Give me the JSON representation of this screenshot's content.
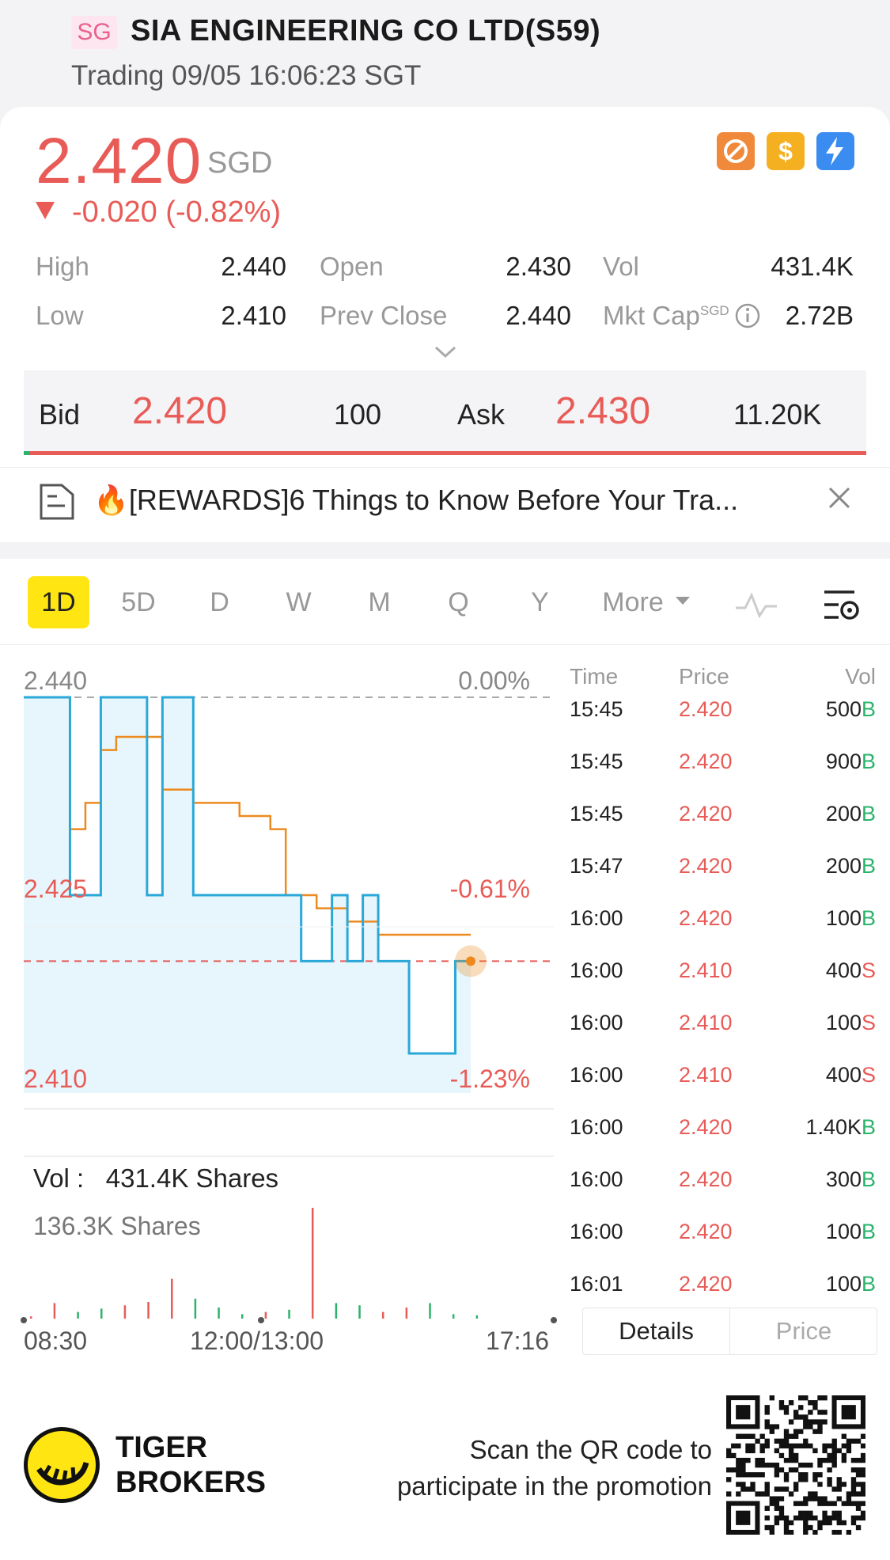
{
  "header": {
    "market_badge": "SG",
    "stock_name": "SIA ENGINEERING CO LTD(S59)",
    "trading_status": "Trading 09/05 16:06:23 SGT"
  },
  "quote": {
    "last_price": "2.420",
    "currency": "SGD",
    "change": "-0.020 (-0.82%)",
    "flags": [
      "no-short-icon",
      "dividend-icon",
      "fast-trade-icon"
    ],
    "stats": {
      "high_label": "High",
      "high": "2.440",
      "low_label": "Low",
      "low": "2.410",
      "open_label": "Open",
      "open": "2.430",
      "prev_close_label": "Prev Close",
      "prev_close": "2.440",
      "vol_label": "Vol",
      "vol": "431.4K",
      "mkt_cap_label": "Mkt Cap",
      "mkt_cap_sup": "SGD",
      "mkt_cap": "2.72B"
    }
  },
  "bid_ask": {
    "bid_label": "Bid",
    "bid_price": "2.420",
    "bid_size": "100",
    "ask_label": "Ask",
    "ask_price": "2.430",
    "ask_size": "11.20K"
  },
  "news": {
    "text": "🔥[REWARDS]6 Things to Know Before Your Tra..."
  },
  "chart_tabs": [
    "1D",
    "5D",
    "D",
    "W",
    "M",
    "Q",
    "Y",
    "More"
  ],
  "colors": {
    "up": "#2bb36b",
    "down": "#e85b57",
    "price_line": "#2aa8d8",
    "avg_line": "#ec8a1f",
    "accent": "#ffe612"
  },
  "chart_data": {
    "type": "line",
    "y_labels": {
      "top": "2.440",
      "mid": "2.425",
      "bottom": "2.410"
    },
    "pct_labels": {
      "top": "0.00%",
      "mid": "-0.61%",
      "bottom": "-1.23%"
    },
    "ylim": [
      2.41,
      2.44
    ],
    "prev_close": 2.44,
    "last": 2.42,
    "series": [
      {
        "values": [
          2.44,
          2.44,
          2.44,
          2.425,
          2.425,
          2.44,
          2.44,
          2.44,
          2.425,
          2.44,
          2.44,
          2.425,
          2.425,
          2.425,
          2.425,
          2.425,
          2.425,
          2.425,
          2.42,
          2.42,
          2.425,
          2.42,
          2.425,
          2.42,
          2.42,
          2.413,
          2.413,
          2.413,
          2.42,
          2.42
        ]
      },
      {
        "values": [
          2.44,
          2.44,
          2.44,
          2.43,
          2.432,
          2.436,
          2.437,
          2.437,
          2.437,
          2.433,
          2.433,
          2.432,
          2.432,
          2.432,
          2.431,
          2.431,
          2.43,
          2.425,
          2.425,
          2.424,
          2.424,
          2.423,
          2.423,
          2.422,
          2.422,
          2.422,
          2.422,
          2.422,
          2.422,
          2.422
        ]
      }
    ],
    "volume": {
      "label": "Vol :",
      "total": "431.4K Shares",
      "max_label": "136.3K Shares",
      "bars": [
        {
          "v": 2,
          "c": "down"
        },
        {
          "v": 14,
          "c": "down"
        },
        {
          "v": 6,
          "c": "up"
        },
        {
          "v": 9,
          "c": "up"
        },
        {
          "v": 12,
          "c": "down"
        },
        {
          "v": 15,
          "c": "down"
        },
        {
          "v": 36,
          "c": "down"
        },
        {
          "v": 18,
          "c": "up"
        },
        {
          "v": 10,
          "c": "up"
        },
        {
          "v": 4,
          "c": "up"
        },
        {
          "v": 6,
          "c": "down"
        },
        {
          "v": 8,
          "c": "up"
        },
        {
          "v": 100,
          "c": "down"
        },
        {
          "v": 14,
          "c": "up"
        },
        {
          "v": 12,
          "c": "up"
        },
        {
          "v": 6,
          "c": "down"
        },
        {
          "v": 10,
          "c": "down"
        },
        {
          "v": 14,
          "c": "up"
        },
        {
          "v": 4,
          "c": "up"
        },
        {
          "v": 3,
          "c": "up"
        }
      ]
    },
    "time_labels": [
      "08:30",
      "12:00/13:00",
      "17:16"
    ]
  },
  "ticks": {
    "headers": [
      "Time",
      "Price",
      "Vol"
    ],
    "rows": [
      {
        "time": "15:45",
        "price": "2.420",
        "vol": "500",
        "side": "B"
      },
      {
        "time": "15:45",
        "price": "2.420",
        "vol": "900",
        "side": "B"
      },
      {
        "time": "15:45",
        "price": "2.420",
        "vol": "200",
        "side": "B"
      },
      {
        "time": "15:47",
        "price": "2.420",
        "vol": "200",
        "side": "B"
      },
      {
        "time": "16:00",
        "price": "2.420",
        "vol": "100",
        "side": "B"
      },
      {
        "time": "16:00",
        "price": "2.410",
        "vol": "400",
        "side": "S"
      },
      {
        "time": "16:00",
        "price": "2.410",
        "vol": "100",
        "side": "S"
      },
      {
        "time": "16:00",
        "price": "2.410",
        "vol": "400",
        "side": "S"
      },
      {
        "time": "16:00",
        "price": "2.420",
        "vol": "1.40K",
        "side": "B"
      },
      {
        "time": "16:00",
        "price": "2.420",
        "vol": "300",
        "side": "B"
      },
      {
        "time": "16:00",
        "price": "2.420",
        "vol": "100",
        "side": "B"
      },
      {
        "time": "16:01",
        "price": "2.420",
        "vol": "100",
        "side": "B"
      }
    ],
    "tabs": [
      "Details",
      "Price"
    ]
  },
  "footer": {
    "brand_line1": "TIGER",
    "brand_line2": "BROKERS",
    "promo_line1": "Scan the QR code to",
    "promo_line2": "participate in the promotion"
  }
}
